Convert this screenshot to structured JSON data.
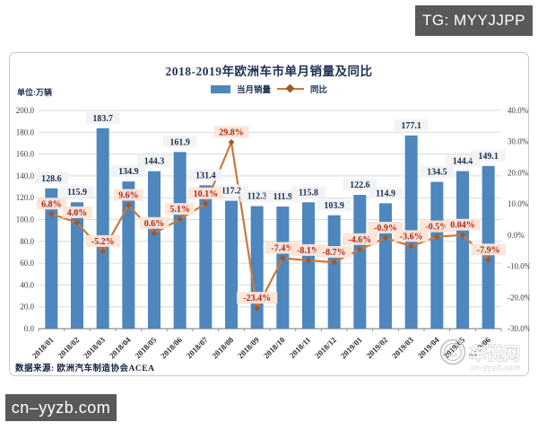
{
  "badges": {
    "tg": "TG: MYYJJPP",
    "site": "cn–yyzb.com"
  },
  "chart": {
    "title": "2018-2019年欧洲车市单月销量及同比",
    "unit_label": "单位:万辆",
    "source": "数据来源: 欧洲汽车制造协会ACEA"
  },
  "chart_data": {
    "type": "bar+line",
    "title": "2018-2019年欧洲车市单月销量及同比",
    "categories": [
      "2018/01",
      "2018/02",
      "2018/03",
      "2018/04",
      "2018/05",
      "2018/06",
      "2018/07",
      "2018/08",
      "2018/09",
      "2018/10",
      "2018/11",
      "2018/12",
      "2019/01",
      "2019/02",
      "2019/03",
      "2019/04",
      "2019/05",
      "2019/06"
    ],
    "series": [
      {
        "name": "当月销量",
        "type": "bar",
        "axis": "left",
        "values": [
          128.6,
          115.9,
          183.7,
          134.9,
          144.3,
          161.9,
          131.4,
          117.2,
          112.3,
          111.9,
          115.8,
          103.9,
          122.6,
          114.9,
          177.1,
          134.5,
          144.4,
          149.1
        ],
        "labels": [
          "128.6",
          "115.9",
          "183.7",
          "134.9",
          "144.3",
          "161.9",
          "131.4",
          "117.2",
          "112.3",
          "111.9",
          "115.8",
          "103.9",
          "122.6",
          "114.9",
          "177.1",
          "134.5",
          "144.4",
          "149.1"
        ]
      },
      {
        "name": "同比",
        "type": "line",
        "axis": "right",
        "values": [
          6.8,
          4.0,
          -5.2,
          9.6,
          0.6,
          5.1,
          10.1,
          29.8,
          -23.4,
          -7.4,
          -8.1,
          -8.7,
          -4.6,
          -0.9,
          -3.6,
          -0.5,
          0.04,
          -7.9
        ],
        "labels": [
          "6.8%",
          "4.0%",
          "-5.2%",
          "9.6%",
          "0.6%",
          "5.1%",
          "10.1%",
          "29.8%",
          "-23.4%",
          "-7.4%",
          "-8.1%",
          "-8.7%",
          "-4.6%",
          "-0.9%",
          "-3.6%",
          "-0.5%",
          "0.04%",
          "-7.9%"
        ]
      }
    ],
    "left_axis": {
      "min": 0,
      "max": 200,
      "step": 20,
      "ticks": [
        "0.0",
        "20.0",
        "40.0",
        "60.0",
        "80.0",
        "100.0",
        "120.0",
        "140.0",
        "160.0",
        "180.0",
        "200.0"
      ]
    },
    "right_axis": {
      "min": -30,
      "max": 40,
      "step": 10,
      "ticks": [
        "-30.0%",
        "-20.0%",
        "-10.0%",
        "0.0%",
        "10.0%",
        "20.0%",
        "30.0%",
        "40.0%"
      ]
    },
    "legend_position": "top",
    "grid": true
  },
  "style": {
    "bar_color": "#4e86be",
    "line_color": "#c97a3a",
    "marker_color": "#9c5a26",
    "grid_color": "#d9d9d9",
    "axis_color": "#8f8f8f",
    "value_label_bg": "#f1f2f4",
    "value_label_text": "#1c2d50",
    "pct_label_bg": "#fbe5d5",
    "pct_label_text": "#b2261a"
  },
  "watermark": {
    "icon": "smiley-circle",
    "text": "车悦网",
    "subtext": "cn-yyzb.com"
  }
}
